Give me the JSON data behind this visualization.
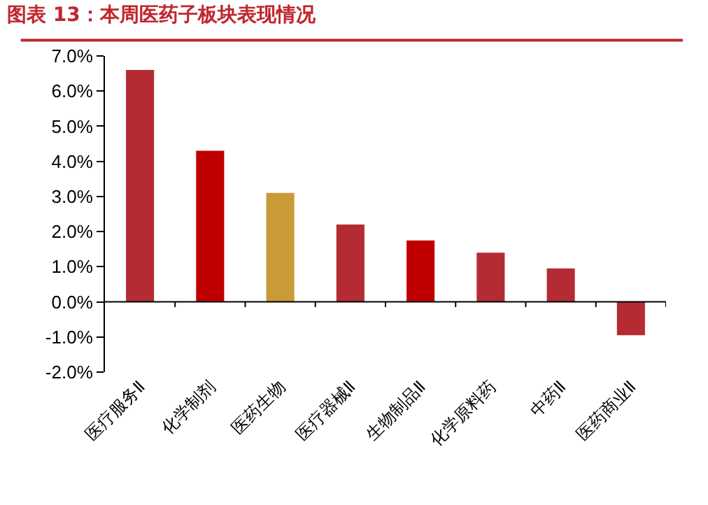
{
  "chart_data": {
    "type": "bar",
    "title": "图表 13：本周医药子板块表现情况",
    "categories": [
      "医疗服务Ⅱ",
      "化学制剂",
      "医药生物",
      "医疗器械Ⅱ",
      "生物制品Ⅱ",
      "化学原料药",
      "中药Ⅱ",
      "医药商业Ⅱ"
    ],
    "values": [
      6.6,
      4.3,
      3.1,
      2.2,
      1.75,
      1.4,
      0.95,
      -0.95
    ],
    "colors": [
      "#b52b33",
      "#c00000",
      "#c99a35",
      "#b52b33",
      "#c00000",
      "#b52b33",
      "#b52b33",
      "#b52b33"
    ],
    "ylim": [
      -2.0,
      7.0
    ],
    "yticks": [
      {
        "value": -2.0,
        "label": "-2.0%"
      },
      {
        "value": -1.0,
        "label": "-1.0%"
      },
      {
        "value": 0.0,
        "label": "0.0%"
      },
      {
        "value": 1.0,
        "label": "1.0%"
      },
      {
        "value": 2.0,
        "label": "2.0%"
      },
      {
        "value": 3.0,
        "label": "3.0%"
      },
      {
        "value": 4.0,
        "label": "4.0%"
      },
      {
        "value": 5.0,
        "label": "5.0%"
      },
      {
        "value": 6.0,
        "label": "6.0%"
      },
      {
        "value": 7.0,
        "label": "7.0%"
      }
    ]
  }
}
